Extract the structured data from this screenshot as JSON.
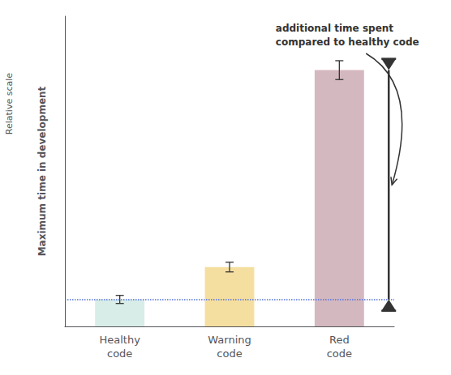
{
  "chart_data": {
    "type": "bar",
    "categories": [
      "Healthy\ncode",
      "Warning\ncode",
      "Red\ncode"
    ],
    "values": [
      1.0,
      2.2,
      9.5
    ],
    "errors": [
      0.15,
      0.18,
      0.35
    ],
    "colors": [
      "#d8ede8",
      "#f5dfa0",
      "#d4b8c0"
    ],
    "hline": 1.0,
    "annotation": "additional time spent\ncompared to healthy code",
    "ylabel": [
      "Relative scale",
      "Maximum time in development"
    ],
    "ylim": [
      0,
      11.5
    ],
    "yticks": [],
    "tick_labels": "x",
    "grid": false
  }
}
